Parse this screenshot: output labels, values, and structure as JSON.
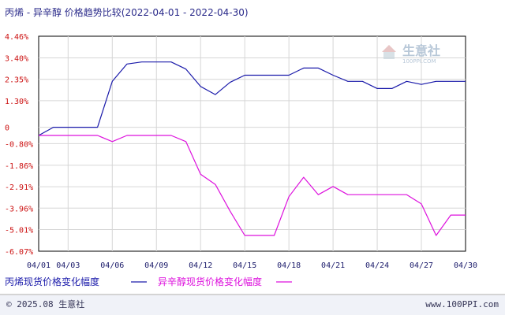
{
  "chart_data": {
    "type": "line",
    "title": "丙烯 - 异辛醇 价格趋势比较",
    "date_range": "(2022-04-01 - 2022-04-30)",
    "x": [
      1,
      2,
      3,
      4,
      5,
      6,
      7,
      8,
      9,
      10,
      11,
      12,
      13,
      14,
      15,
      16,
      17,
      18,
      19,
      20,
      21,
      22,
      23,
      24,
      25,
      26,
      27,
      28,
      29,
      30
    ],
    "x_tick_labels": [
      "04/01",
      "04/03",
      "04/06",
      "04/09",
      "04/12",
      "04/15",
      "04/18",
      "04/21",
      "04/24",
      "04/27",
      "04/30"
    ],
    "x_tick_days": [
      1,
      3,
      6,
      9,
      12,
      15,
      18,
      21,
      24,
      27,
      30
    ],
    "y_tick_labels": [
      "4.46%",
      "3.40%",
      "2.35%",
      "1.30%",
      "0",
      "-0.80%",
      "-1.86%",
      "-2.91%",
      "-3.96%",
      "-5.01%",
      "-6.07%"
    ],
    "y_tick_values": [
      4.46,
      3.4,
      2.35,
      1.3,
      0,
      -0.8,
      -1.86,
      -2.91,
      -3.96,
      -5.01,
      -6.07
    ],
    "ylim": [
      -6.07,
      4.46
    ],
    "xlim": [
      1,
      30
    ],
    "grid": true,
    "legend_position": "bottom",
    "series": [
      {
        "name": "丙烯现货价格变化幅度",
        "color": "#1a1aaa",
        "values": [
          -0.4,
          0,
          0,
          0,
          0,
          2.25,
          3.1,
          3.2,
          3.2,
          3.2,
          2.85,
          2.0,
          1.6,
          2.2,
          2.55,
          2.55,
          2.55,
          2.55,
          2.9,
          2.9,
          2.55,
          2.25,
          2.25,
          1.9,
          1.9,
          2.25,
          2.1,
          2.25,
          2.25,
          2.25
        ]
      },
      {
        "name": "异辛醇现货价格变化幅度",
        "color": "#dd11dd",
        "values": [
          -0.4,
          -0.4,
          -0.4,
          -0.4,
          -0.4,
          -0.7,
          -0.4,
          -0.4,
          -0.4,
          -0.4,
          -0.7,
          -2.3,
          -2.8,
          -4.1,
          -5.3,
          -5.3,
          -5.3,
          -3.4,
          -2.45,
          -3.3,
          -2.9,
          -3.3,
          -3.3,
          -3.3,
          -3.3,
          -3.3,
          -3.75,
          -5.3,
          -4.3,
          -4.3
        ]
      }
    ]
  },
  "watermark": {
    "brand": "生意社",
    "url": "100PPI.COM"
  },
  "footer": {
    "copyright": "© 2025.08 生意社",
    "site": "www.100PPI.com"
  }
}
